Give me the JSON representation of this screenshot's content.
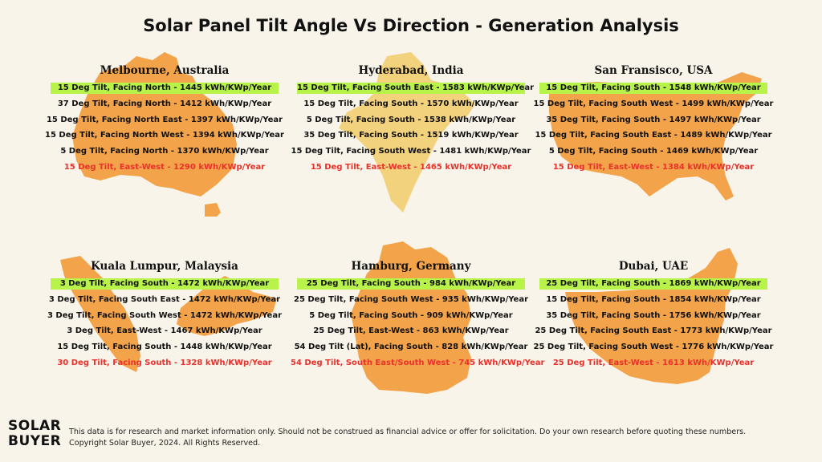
{
  "title": "Solar Panel Tilt Angle Vs Direction - Generation Analysis",
  "colors": {
    "map_orange": "#f3a34a",
    "map_yellow": "#f3d27d",
    "best_highlight": "#b8f34a",
    "worst_text": "#e8322b"
  },
  "panels": [
    {
      "city": "Melbourne, Australia",
      "map_icon": "australia-map",
      "rows": [
        "15 Deg Tilt, Facing North - 1445 kWh/KWp/Year",
        "37 Deg Tilt, Facing North - 1412 kWh/KWp/Year",
        "15 Deg Tilt, Facing North East - 1397 kWh/KWp/Year",
        "15 Deg Tilt, Facing North West - 1394 kWh/KWp/Year",
        "5 Deg Tilt, Facing North - 1370 kWh/KWp/Year",
        "15 Deg Tilt, East-West - 1290 kWh/KWp/Year"
      ]
    },
    {
      "city": "Hyderabad, India",
      "map_icon": "india-map",
      "rows": [
        "15 Deg Tilt, Facing South East - 1583 kWh/KWp/Year",
        "15 Deg Tilt, Facing South - 1570 kWh/KWp/Year",
        "5 Deg Tilt, Facing South - 1538 kWh/KWp/Year",
        "35 Deg Tilt, Facing South - 1519 kWh/KWp/Year",
        "15 Deg Tilt, Facing South West - 1481 kWh/KWp/Year",
        "15 Deg Tilt, East-West - 1465 kWh/KWp/Year"
      ]
    },
    {
      "city": "San Fransisco, USA",
      "map_icon": "usa-map",
      "rows": [
        "15 Deg Tilt, Facing South - 1548 kWh/KWp/Year",
        "15 Deg Tilt, Facing South West - 1499 kWh/KWp/Year",
        "35 Deg Tilt, Facing South - 1497 kWh/KWp/Year",
        "15 Deg Tilt, Facing South East - 1489 kWh/KWp/Year",
        "5 Deg Tilt, Facing South - 1469 kWh/KWp/Year",
        "15 Deg Tilt, East-West - 1384 kWh/KWp/Year"
      ]
    },
    {
      "city": "Kuala Lumpur, Malaysia",
      "map_icon": "malaysia-map",
      "rows": [
        "3 Deg Tilt, Facing South - 1472 kWh/KWp/Year",
        "3 Deg Tilt, Facing South East - 1472 kWh/KWp/Year",
        "3 Deg Tilt, Facing South West - 1472 kWh/KWp/Year",
        "3 Deg Tilt, East-West - 1467 kWh/KWp/Year",
        "15 Deg Tilt, Facing South - 1448 kWh/KWp/Year",
        "30 Deg Tilt, Facing South - 1328 kWh/KWp/Year"
      ]
    },
    {
      "city": "Hamburg, Germany",
      "map_icon": "germany-map",
      "rows": [
        "25 Deg Tilt, Facing South - 984 kWh/KWp/Year",
        "25 Deg Tilt, Facing South West - 935 kWh/KWp/Year",
        "5 Deg Tilt, Facing South - 909 kWh/KWp/Year",
        "25 Deg Tilt, East-West - 863 kWh/KWp/Year",
        "54 Deg Tilt (Lat), Facing South - 828 kWh/KWp/Year",
        "54 Deg Tilt, South East/South West - 745 kWh/KWp/Year"
      ]
    },
    {
      "city": "Dubai, UAE",
      "map_icon": "uae-map",
      "rows": [
        "25 Deg Tilt, Facing South - 1869 kWh/KWp/Year",
        "15 Deg Tilt, Facing South - 1854 kWh/KWp/Year",
        "35 Deg Tilt, Facing South - 1756 kWh/KWp/Year",
        "25 Deg Tilt, Facing South East - 1773 kWh/KWp/Year",
        "25 Deg Tilt, Facing South West - 1776 kWh/KWp/Year",
        "25 Deg Tilt, East-West - 1613 kWh/KWp/Year"
      ]
    }
  ],
  "logo": {
    "line1": "SOLAR",
    "line2": "BUYER"
  },
  "disclaimer": {
    "line1": "This data is for research and market information only. Should not be construed as financial advice or offer for solicitation. Do your own research before quoting these numbers.",
    "line2": "Copyright Solar Buyer, 2024. All Rights Reserved."
  }
}
